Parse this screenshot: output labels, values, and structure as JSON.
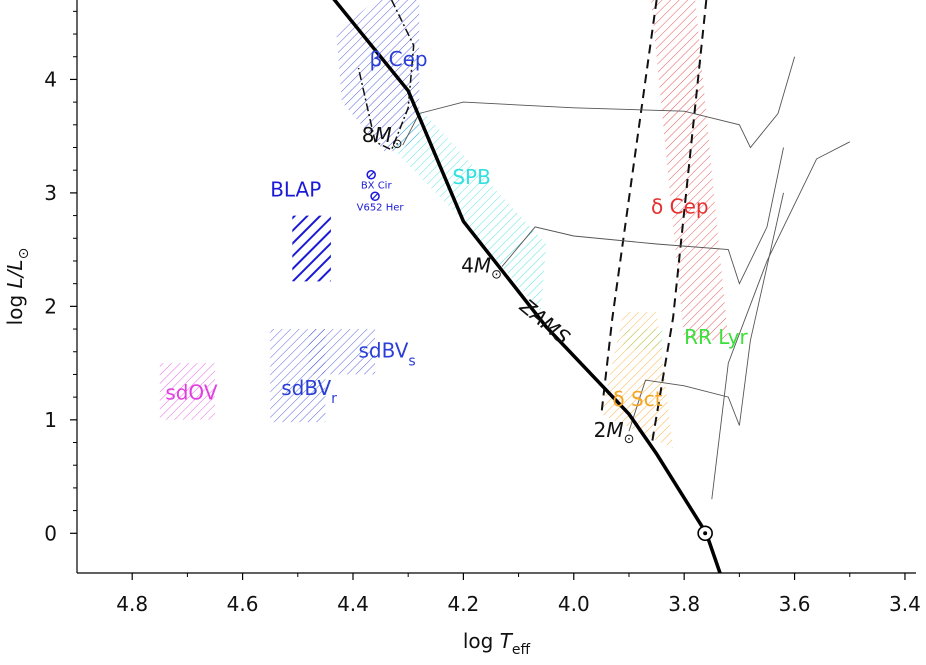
{
  "chart_data": {
    "type": "scatter",
    "title": "",
    "xlabel": {
      "main": "log T",
      "sub": "eff"
    },
    "ylabel": {
      "main": "log L/L",
      "sub": "⊙"
    },
    "xlim": [
      4.9,
      3.38
    ],
    "ylim": [
      -0.35,
      4.7
    ],
    "x_ticks": [
      "4.8",
      "4.6",
      "4.4",
      "4.2",
      "4.0",
      "3.8",
      "3.6",
      "3.4"
    ],
    "x_tick_values": [
      4.8,
      4.6,
      4.4,
      4.2,
      4.0,
      3.8,
      3.6,
      3.4
    ],
    "y_ticks": [
      "0",
      "1",
      "2",
      "3",
      "4"
    ],
    "y_tick_values": [
      0,
      1,
      2,
      3,
      4
    ],
    "zams": {
      "label": "ZAMS",
      "points": [
        [
          4.45,
          4.8
        ],
        [
          4.3,
          3.9
        ],
        [
          4.2,
          2.75
        ],
        [
          4.05,
          1.82
        ],
        [
          3.9,
          1.05
        ],
        [
          3.85,
          0.7
        ],
        [
          3.76,
          0.0
        ],
        [
          3.735,
          -0.35
        ]
      ]
    },
    "sun": {
      "x": 3.762,
      "y": 0.0,
      "symbol": "⊙"
    },
    "masses": [
      {
        "label": "8M",
        "sub": "⊙",
        "x": 4.31,
        "y": 3.45
      },
      {
        "label": "4M",
        "sub": "⊙",
        "x": 4.13,
        "y": 2.3
      },
      {
        "label": "2M",
        "sub": "⊙",
        "x": 3.89,
        "y": 0.85
      }
    ],
    "regions": [
      {
        "name": "β Cep",
        "color": "#2b3fd6",
        "polygon": [
          [
            4.36,
            4.7
          ],
          [
            4.28,
            4.7
          ],
          [
            4.28,
            3.45
          ],
          [
            4.34,
            3.35
          ],
          [
            4.42,
            3.8
          ],
          [
            4.43,
            4.4
          ]
        ],
        "label_x": 4.37,
        "label_y": 4.12
      },
      {
        "name": "SPB",
        "color": "#33e0e0",
        "polygon": [
          [
            4.28,
            3.75
          ],
          [
            4.05,
            2.55
          ],
          [
            4.06,
            1.95
          ],
          [
            4.2,
            2.75
          ],
          [
            4.33,
            3.4
          ]
        ],
        "label_x": 4.22,
        "label_y": 3.08
      },
      {
        "name": "δ Cep",
        "color": "#e53030",
        "polygon": [
          [
            3.86,
            4.7
          ],
          [
            3.78,
            4.7
          ],
          [
            3.72,
            1.7
          ],
          [
            3.8,
            1.7
          ]
        ],
        "label_x": 3.86,
        "label_y": 2.82
      },
      {
        "name": "RR Lyr",
        "color": "#3ce03c",
        "polygon": [
          [
            3.91,
            1.8
          ],
          [
            3.84,
            1.8
          ],
          [
            3.84,
            1.62
          ],
          [
            3.91,
            1.62
          ]
        ],
        "label_x": 3.8,
        "label_y": 1.67
      },
      {
        "name": "δ Sct",
        "color": "#f5a623",
        "polygon": [
          [
            3.91,
            1.95
          ],
          [
            3.85,
            1.95
          ],
          [
            3.82,
            0.75
          ],
          [
            3.95,
            1.05
          ]
        ],
        "label_x": 3.93,
        "label_y": 1.12
      },
      {
        "name": "BLAP",
        "color": "#1a1ad6",
        "polygon": [
          [
            4.51,
            2.8
          ],
          [
            4.44,
            2.8
          ],
          [
            4.44,
            2.22
          ],
          [
            4.51,
            2.22
          ]
        ],
        "label_x": 4.55,
        "label_y": 2.97,
        "dense": true
      },
      {
        "name": "sdBV",
        "sub": "s",
        "color": "#2b3fd6",
        "polygon": [
          [
            4.48,
            1.8
          ],
          [
            4.36,
            1.8
          ],
          [
            4.36,
            1.4
          ],
          [
            4.48,
            1.4
          ]
        ],
        "label_x": 4.39,
        "label_y": 1.55
      },
      {
        "name": "sdBV",
        "sub": "r",
        "color": "#2b3fd6",
        "polygon": [
          [
            4.55,
            1.8
          ],
          [
            4.45,
            1.8
          ],
          [
            4.45,
            0.98
          ],
          [
            4.55,
            0.98
          ]
        ],
        "label_x": 4.53,
        "label_y": 1.22
      },
      {
        "name": "sdOV",
        "color": "#e040e0",
        "polygon": [
          [
            4.75,
            1.5
          ],
          [
            4.65,
            1.5
          ],
          [
            4.65,
            1.0
          ],
          [
            4.75,
            1.0
          ]
        ],
        "label_x": 4.74,
        "label_y": 1.18
      }
    ],
    "stars": [
      {
        "name": "BX Cir",
        "x": 4.367,
        "y": 3.16
      },
      {
        "name": "V652 Her",
        "x": 4.36,
        "y": 2.97
      }
    ]
  }
}
